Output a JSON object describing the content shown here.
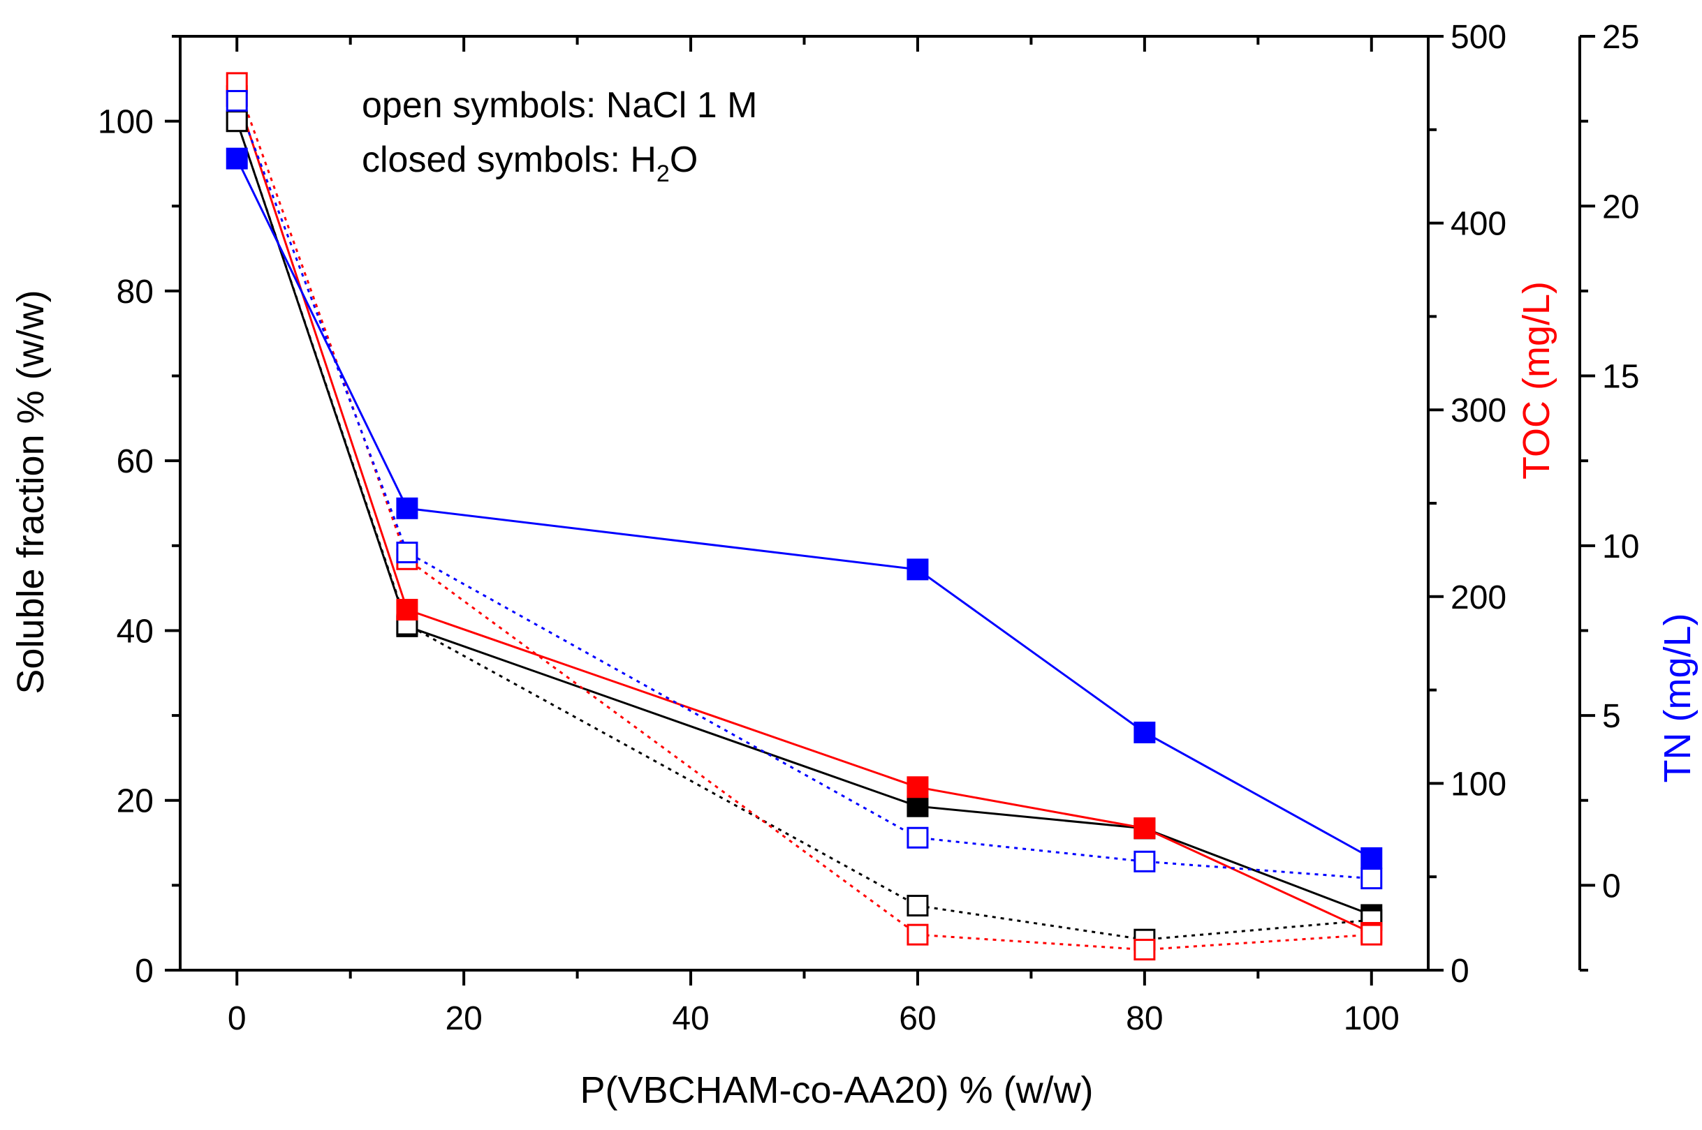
{
  "chart_data": {
    "type": "line",
    "xlabel": "P(VBCHAM-co-AA20) % (w/w)",
    "ylabel": "Soluble fraction % (w/w)",
    "y2label": "TOC (mg/L)",
    "y3label": "TN (mg/L)",
    "annotation_line1": "open symbols: NaCl 1 M",
    "annotation_line2_prefix": "closed symbols: H",
    "annotation_line2_sub": "2",
    "annotation_line2_suffix": "O",
    "xlim": [
      -5,
      105
    ],
    "ylim": [
      0,
      110
    ],
    "y2lim": [
      0,
      500
    ],
    "y3lim": [
      -2.5,
      25
    ],
    "x_ticks": [
      0,
      20,
      40,
      60,
      80,
      100
    ],
    "y_ticks": [
      0,
      20,
      40,
      60,
      80,
      100
    ],
    "y2_ticks": [
      0,
      100,
      200,
      300,
      400,
      500
    ],
    "y3_ticks": [
      0,
      5,
      10,
      15,
      20,
      25
    ],
    "x": [
      0,
      15,
      60,
      80,
      100
    ],
    "series": [
      {
        "name": "Soluble fraction (H2O)",
        "axis": "y",
        "color": "#000000",
        "filled": true,
        "dotted": false,
        "values": [
          100,
          40.5,
          19.3,
          16.7,
          6.5
        ]
      },
      {
        "name": "Soluble fraction (NaCl 1 M)",
        "axis": "y",
        "color": "#000000",
        "filled": false,
        "dotted": true,
        "values": [
          100,
          40.7,
          7.6,
          3.6,
          5.9
        ]
      },
      {
        "name": "TOC (H2O)",
        "axis": "y2",
        "color": "#ff0000",
        "filled": true,
        "dotted": false,
        "values": [
          468,
          193,
          98,
          76,
          20
        ]
      },
      {
        "name": "TOC (NaCl 1 M)",
        "axis": "y2",
        "color": "#ff0000",
        "filled": false,
        "dotted": true,
        "values": [
          475,
          220,
          19,
          11,
          19
        ]
      },
      {
        "name": "TN (H2O)",
        "axis": "y3",
        "color": "#0000ff",
        "filled": true,
        "dotted": false,
        "values": [
          21.4,
          11.1,
          9.3,
          4.5,
          0.8
        ]
      },
      {
        "name": "TN (NaCl 1 M)",
        "axis": "y3",
        "color": "#0000ff",
        "filled": false,
        "dotted": true,
        "values": [
          23.1,
          9.8,
          1.4,
          0.7,
          0.2
        ]
      }
    ]
  }
}
